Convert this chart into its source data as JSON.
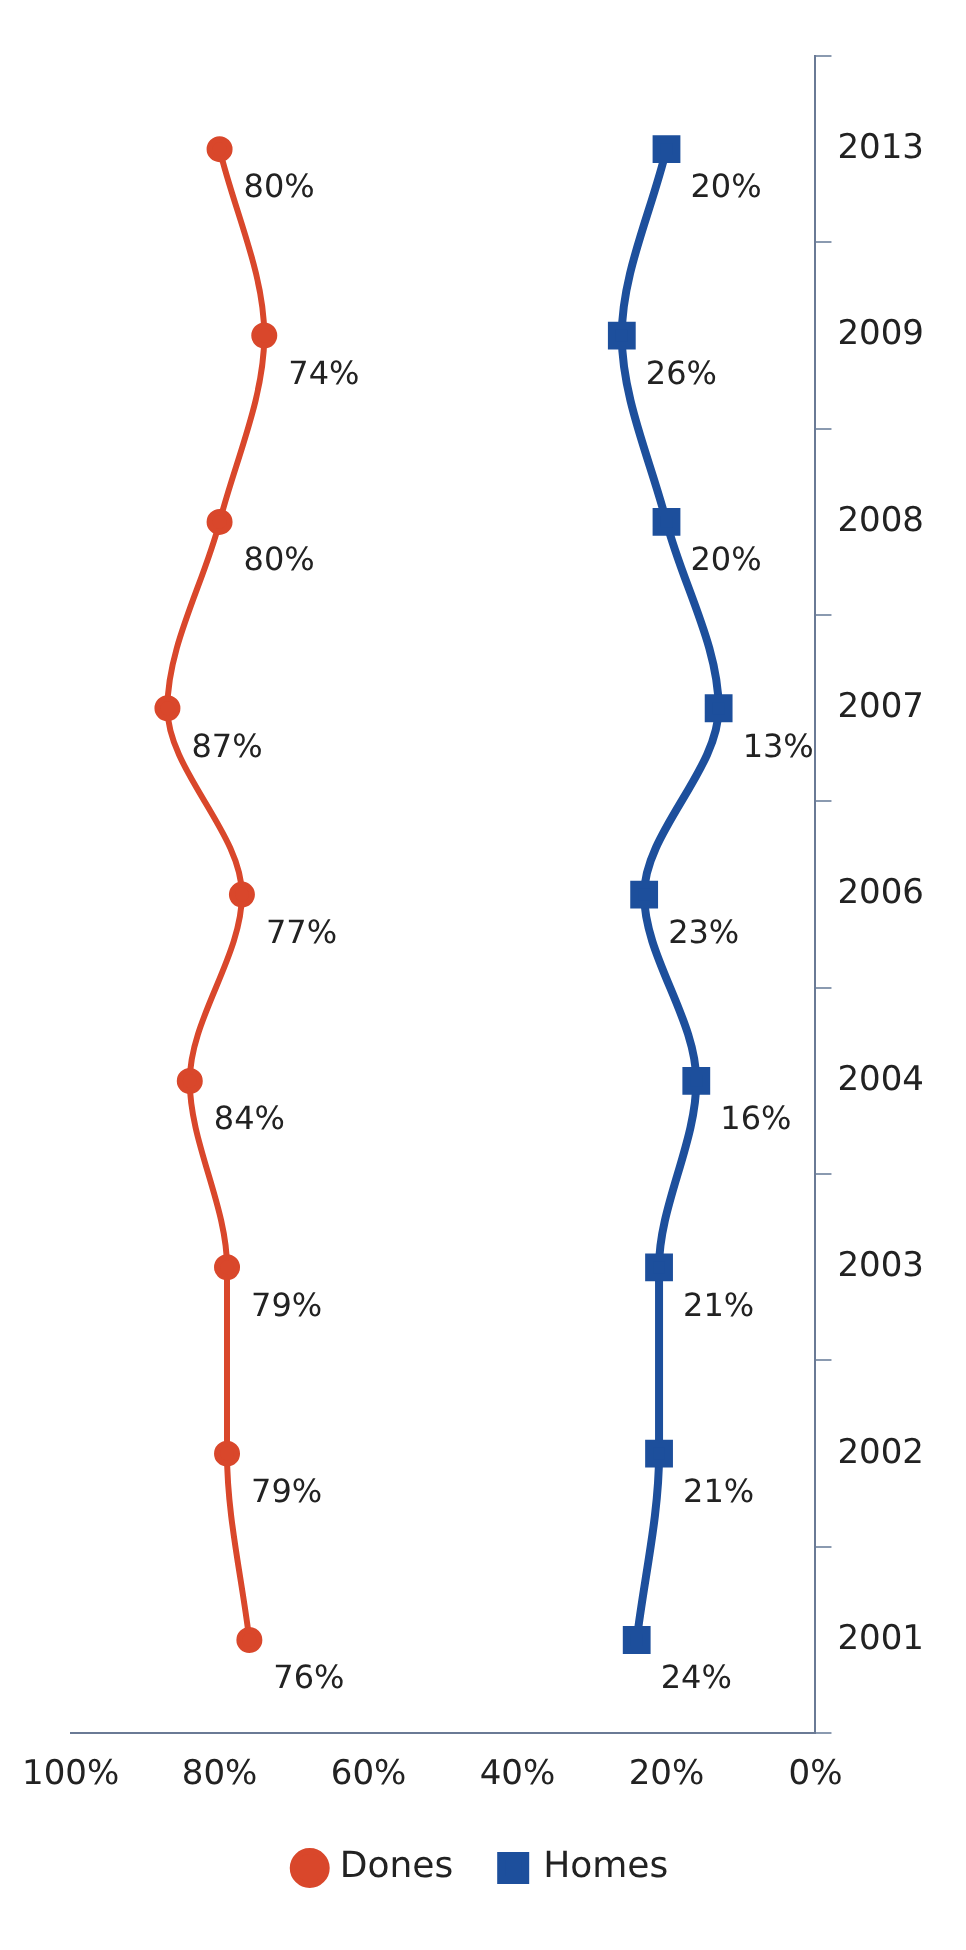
{
  "chart_data": {
    "type": "line",
    "orientation": "horizontal",
    "categories": [
      "2013",
      "2009",
      "2008",
      "2007",
      "2006",
      "2004",
      "2003",
      "2002",
      "2001"
    ],
    "series": [
      {
        "name": "Dones",
        "color": "#d9472b",
        "marker": "circle",
        "values": [
          80,
          74,
          80,
          87,
          77,
          84,
          79,
          79,
          76
        ],
        "value_labels": [
          "80%",
          "74%",
          "80%",
          "87%",
          "77%",
          "84%",
          "79%",
          "79%",
          "76%"
        ]
      },
      {
        "name": "Homes",
        "color": "#1d4f9c",
        "marker": "square",
        "values": [
          20,
          26,
          20,
          13,
          23,
          16,
          21,
          21,
          24
        ],
        "value_labels": [
          "20%",
          "26%",
          "20%",
          "13%",
          "23%",
          "16%",
          "21%",
          "21%",
          "24%"
        ]
      }
    ],
    "xlim": [
      100,
      0
    ],
    "xticks": [
      {
        "value": 100,
        "label": "100%"
      },
      {
        "value": 80,
        "label": "80%"
      },
      {
        "value": 60,
        "label": "60%"
      },
      {
        "value": 40,
        "label": "40%"
      },
      {
        "value": 20,
        "label": "20%"
      },
      {
        "value": 0,
        "label": "0%"
      }
    ],
    "grid": false,
    "legend": "bottom",
    "line_style": "solid"
  }
}
